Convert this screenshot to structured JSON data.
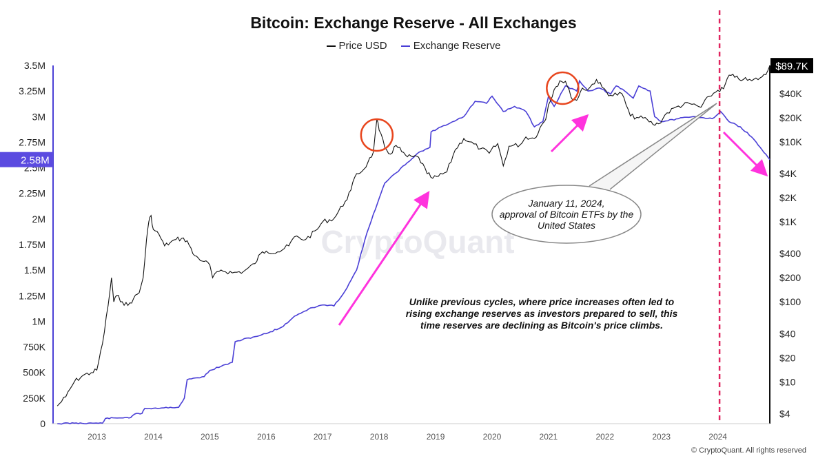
{
  "chart_data": {
    "type": "line",
    "title": "Bitcoin: Exchange Reserve - All Exchanges",
    "watermark": "CryptoQuant",
    "copyright": "© CryptoQuant. All rights reserved",
    "colors": {
      "price": "#111111",
      "reserve": "#4a3fd6",
      "annotation_arrow": "#ff33dd",
      "circle": "#e8461e",
      "etf_line": "#e0245e",
      "reserve_badge": "#5b4be0",
      "price_badge": "#000000"
    },
    "x_axis": {
      "ticks": [
        "2013",
        "2014",
        "2015",
        "2016",
        "2017",
        "2018",
        "2019",
        "2020",
        "2021",
        "2022",
        "2023",
        "2024"
      ],
      "range": [
        2012.2,
        2024.92
      ]
    },
    "left_axis": {
      "ticks": [
        {
          "v": 0,
          "label": "0"
        },
        {
          "v": 250000,
          "label": "250K"
        },
        {
          "v": 500000,
          "label": "500K"
        },
        {
          "v": 750000,
          "label": "750K"
        },
        {
          "v": 1000000,
          "label": "1M"
        },
        {
          "v": 1250000,
          "label": "1.25M"
        },
        {
          "v": 1500000,
          "label": "1.5M"
        },
        {
          "v": 1750000,
          "label": "1.75M"
        },
        {
          "v": 2000000,
          "label": "2M"
        },
        {
          "v": 2250000,
          "label": "2.25M"
        },
        {
          "v": 2500000,
          "label": "2.5M"
        },
        {
          "v": 2750000,
          "label": "2.75M"
        },
        {
          "v": 3000000,
          "label": "3M"
        },
        {
          "v": 3250000,
          "label": "3.25M"
        },
        {
          "v": 3500000,
          "label": "3.5M"
        }
      ],
      "range": [
        0,
        3500000
      ]
    },
    "right_axis": {
      "scale": "log",
      "ticks": [
        {
          "v": 4,
          "label": "$4"
        },
        {
          "v": 10,
          "label": "$10"
        },
        {
          "v": 20,
          "label": "$20"
        },
        {
          "v": 40,
          "label": "$40"
        },
        {
          "v": 100,
          "label": "$100"
        },
        {
          "v": 200,
          "label": "$200"
        },
        {
          "v": 400,
          "label": "$400"
        },
        {
          "v": 1000,
          "label": "$1K"
        },
        {
          "v": 2000,
          "label": "$2K"
        },
        {
          "v": 4000,
          "label": "$4K"
        },
        {
          "v": 10000,
          "label": "$10K"
        },
        {
          "v": 20000,
          "label": "$20K"
        },
        {
          "v": 40000,
          "label": "$40K"
        }
      ],
      "range": [
        3,
        90000
      ]
    },
    "current_values": {
      "reserve": "2.58M",
      "price": "$89.7K"
    },
    "series": [
      {
        "name": "Price USD",
        "axis": "right",
        "x": [
          2012.3,
          2012.45,
          2012.6,
          2012.75,
          2012.9,
          2013.0,
          2013.1,
          2013.2,
          2013.26,
          2013.3,
          2013.35,
          2013.45,
          2013.55,
          2013.65,
          2013.75,
          2013.82,
          2013.88,
          2013.92,
          2013.96,
          2014.0,
          2014.1,
          2014.2,
          2014.3,
          2014.4,
          2014.5,
          2014.6,
          2014.7,
          2014.8,
          2014.9,
          2015.0,
          2015.05,
          2015.2,
          2015.4,
          2015.6,
          2015.8,
          2015.9,
          2016.0,
          2016.2,
          2016.4,
          2016.5,
          2016.7,
          2016.9,
          2017.0,
          2017.2,
          2017.4,
          2017.5,
          2017.6,
          2017.7,
          2017.8,
          2017.9,
          2017.96,
          2018.0,
          2018.1,
          2018.2,
          2018.3,
          2018.4,
          2018.5,
          2018.6,
          2018.7,
          2018.85,
          2018.95,
          2019.05,
          2019.2,
          2019.35,
          2019.5,
          2019.6,
          2019.8,
          2019.95,
          2020.1,
          2020.2,
          2020.3,
          2020.5,
          2020.6,
          2020.75,
          2020.85,
          2020.95,
          2021.0,
          2021.1,
          2021.2,
          2021.3,
          2021.4,
          2021.5,
          2021.6,
          2021.7,
          2021.85,
          2021.95,
          2022.1,
          2022.3,
          2022.45,
          2022.6,
          2022.75,
          2022.85,
          2022.95,
          2023.1,
          2023.3,
          2023.5,
          2023.7,
          2023.85,
          2024.0,
          2024.1,
          2024.2,
          2024.3,
          2024.45,
          2024.6,
          2024.75,
          2024.85,
          2024.92
        ],
        "values": [
          5,
          6.5,
          10,
          12,
          13,
          14,
          30,
          90,
          200,
          100,
          120,
          100,
          90,
          110,
          130,
          200,
          600,
          1000,
          1200,
          800,
          700,
          500,
          550,
          600,
          620,
          580,
          400,
          350,
          320,
          290,
          200,
          250,
          230,
          240,
          300,
          400,
          430,
          420,
          500,
          650,
          600,
          800,
          1000,
          1100,
          1800,
          2500,
          4000,
          4300,
          5500,
          7500,
          19000,
          14000,
          8500,
          7000,
          9000,
          7500,
          6500,
          6500,
          6400,
          4000,
          3500,
          3700,
          4200,
          8000,
          11000,
          10000,
          8200,
          7200,
          9500,
          5000,
          8800,
          9200,
          11500,
          11000,
          15000,
          19000,
          29000,
          45000,
          58000,
          57000,
          36000,
          33000,
          47000,
          45000,
          60000,
          48000,
          38000,
          40000,
          21000,
          20000,
          19000,
          16500,
          16800,
          23000,
          28000,
          30000,
          27000,
          37000,
          44000,
          46000,
          68000,
          64000,
          60000,
          58000,
          63000,
          69000,
          89700
        ]
      },
      {
        "name": "Exchange Reserve",
        "axis": "left",
        "x": [
          2012.3,
          2012.6,
          2012.95,
          2013.1,
          2013.15,
          2013.5,
          2013.6,
          2013.7,
          2013.8,
          2013.85,
          2014.0,
          2014.3,
          2014.45,
          2014.55,
          2014.6,
          2014.9,
          2015.0,
          2015.2,
          2015.4,
          2015.45,
          2015.5,
          2015.8,
          2016.0,
          2016.3,
          2016.5,
          2016.75,
          2017.0,
          2017.2,
          2017.4,
          2017.5,
          2017.6,
          2017.75,
          2017.9,
          2018.0,
          2018.1,
          2018.3,
          2018.5,
          2018.7,
          2018.9,
          2018.92,
          2019.1,
          2019.3,
          2019.5,
          2019.7,
          2019.9,
          2020.0,
          2020.2,
          2020.4,
          2020.6,
          2020.75,
          2020.9,
          2021.0,
          2021.1,
          2021.3,
          2021.5,
          2021.55,
          2021.7,
          2021.9,
          2022.1,
          2022.2,
          2022.35,
          2022.5,
          2022.6,
          2022.8,
          2022.88,
          2023.0,
          2023.3,
          2023.6,
          2023.9,
          2024.05,
          2024.2,
          2024.4,
          2024.6,
          2024.75,
          2024.92
        ],
        "values": [
          0,
          5000,
          5000,
          5000,
          50000,
          60000,
          60000,
          100000,
          100000,
          150000,
          150000,
          160000,
          160000,
          250000,
          430000,
          460000,
          520000,
          560000,
          600000,
          800000,
          810000,
          850000,
          880000,
          950000,
          1050000,
          1120000,
          1160000,
          1150000,
          1300000,
          1400000,
          1500000,
          1800000,
          2050000,
          2200000,
          2350000,
          2450000,
          2550000,
          2650000,
          2700000,
          2850000,
          2900000,
          2950000,
          3000000,
          3150000,
          3130000,
          3200000,
          3050000,
          3100000,
          3050000,
          2900000,
          2950000,
          3200000,
          3100000,
          3300000,
          3250000,
          3350000,
          3250000,
          3280000,
          3220000,
          3300000,
          3250000,
          3180000,
          3300000,
          3250000,
          3000000,
          2950000,
          2980000,
          3000000,
          2980000,
          3050000,
          2950000,
          2900000,
          2800000,
          2700000,
          2580000
        ]
      }
    ],
    "annotations": {
      "etf_callout": "January 11, 2024, approval of Bitcoin ETFs by the United States",
      "etf_date": 2024.03,
      "note": "Unlike previous cycles, where price increases often led to rising exchange reserves as investors prepared to sell, this time reserves are declining as Bitcoin's price climbs.",
      "circled_peaks": [
        2017.96,
        2021.25
      ]
    }
  }
}
